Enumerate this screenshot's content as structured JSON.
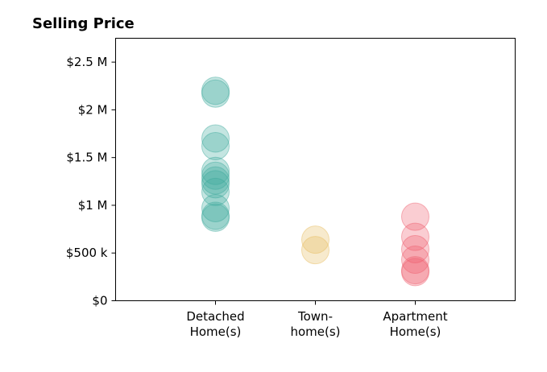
{
  "chart_data": {
    "type": "scatter",
    "title": "Selling Price",
    "xlabel": "",
    "ylabel": "",
    "categories": [
      [
        "Detached",
        "Home(s)"
      ],
      [
        "Town-",
        "home(s)"
      ],
      [
        "Apartment",
        "Home(s)"
      ]
    ],
    "xlim": [
      -0.5,
      3.5
    ],
    "ylim": [
      0,
      2750000
    ],
    "y_ticks": [
      0,
      500000,
      1000000,
      1500000,
      2000000,
      2500000
    ],
    "y_tick_labels": [
      "$0",
      "$500 k",
      "$1 M",
      "$1.5 M",
      "$2 M",
      "$2.5 M"
    ],
    "grid": false,
    "series": [
      {
        "color": "#3ba99c",
        "x": 0.5,
        "values": [
          2200000,
          2170000,
          1700000,
          1620000,
          1360000,
          1310000,
          1260000,
          1220000,
          1140000,
          970000,
          890000,
          870000
        ]
      },
      {
        "color": "#e6bb59",
        "x": 1.5,
        "values": [
          640000,
          530000
        ]
      },
      {
        "color": "#ee5a6a",
        "x": 2.5,
        "values": [
          880000,
          670000,
          540000,
          430000,
          320000,
          300000
        ]
      }
    ]
  }
}
